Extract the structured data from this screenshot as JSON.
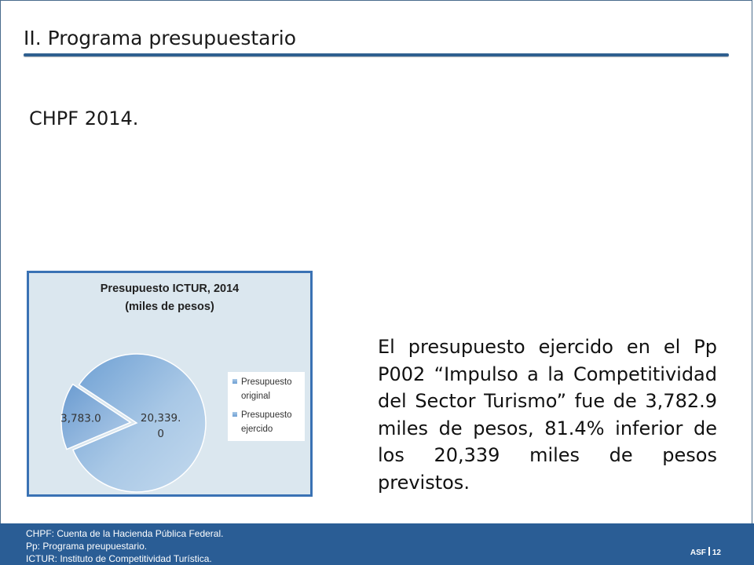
{
  "slide": {
    "title": "II. Programa presupuestario",
    "subtitle": "CHPF 2014.",
    "body": "El presupuesto ejercido en el Pp P002 “Impulso a la Competitivi­dad del Sector Turismo” fue de 3,782.9 miles de pesos, 81.4% inferior de los 20,339 miles de pesos previstos."
  },
  "chart_data": {
    "type": "pie",
    "title_line1": "Presupuesto ICTUR, 2014",
    "title_line2": "(miles de pesos)",
    "categories": [
      "Presupuesto original",
      "Presupuesto ejercido"
    ],
    "values": [
      20339.0,
      3783.0
    ],
    "data_labels": [
      [
        "20,339.",
        "0"
      ],
      [
        "3,783.0"
      ]
    ],
    "legend_lines": [
      [
        "Presupuesto",
        "original"
      ],
      [
        "Presupuesto",
        "ejercido"
      ]
    ],
    "legend_position": "right",
    "exploded": true,
    "colors": {
      "original": "#a7c6e4",
      "ejercido": "#8cb3dc",
      "background": "#dbe7ef",
      "border": "#3a72b4"
    }
  },
  "footer": {
    "notes": [
      "CHPF: Cuenta de la Hacienda Pública Federal.",
      "Pp: Programa preupuestario.",
      "ICTUR: Instituto de Competitividad Turística."
    ],
    "org": "ASF",
    "page": "12"
  }
}
